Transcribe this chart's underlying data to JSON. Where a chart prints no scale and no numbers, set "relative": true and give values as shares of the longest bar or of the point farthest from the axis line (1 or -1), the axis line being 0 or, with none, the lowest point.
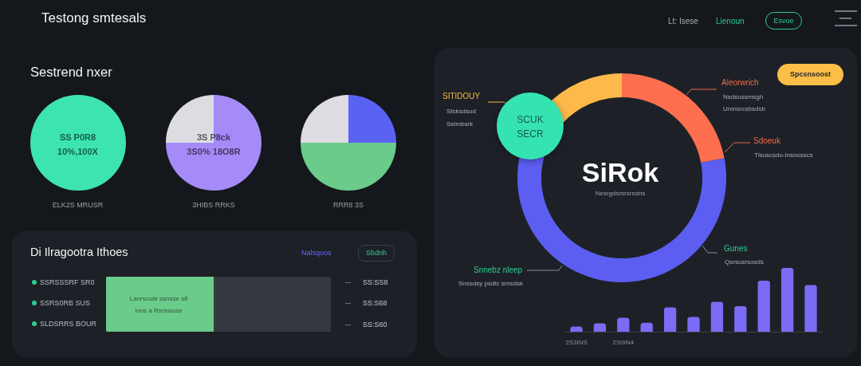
{
  "chart_data": [
    {
      "type": "other",
      "title": "Testong smtesals",
      "annotations": [
        "Lt: Isese",
        "Lienoun",
        "Esvoe"
      ]
    },
    {
      "type": "pie",
      "title": "Sestrend nxer",
      "categories": [
        null
      ],
      "values": [
        100
      ],
      "colors": [
        "#3de3b0"
      ],
      "annotations": [
        "SS P0R8",
        "10%,100X",
        "ELK2S MRUSR"
      ]
    },
    {
      "type": "pie",
      "categories": [
        null,
        null
      ],
      "values": [
        75,
        25
      ],
      "colors": [
        "#a58bf7",
        "#dcdce2"
      ],
      "annotations": [
        "3S P8ck",
        "3S0% 18O8R",
        "3HIBS RRKS"
      ]
    },
    {
      "type": "pie",
      "categories": [
        null,
        null,
        null
      ],
      "values": [
        25,
        50,
        25
      ],
      "colors": [
        "#5a62f2",
        "#6acb8a",
        "#dcdce2"
      ],
      "annotations": [
        "RRR8 3S"
      ]
    },
    {
      "type": "bar",
      "title": "Di Ilragootra Ithoes",
      "orientation": "horizontal",
      "stacked": true,
      "relative": true,
      "categories": [
        null
      ],
      "series": [
        {
          "color": "#6acb8a",
          "values": [
            0.48
          ]
        },
        {
          "color": "#35393f",
          "values": [
            0.52
          ]
        }
      ],
      "annotations": [
        "Nalsquos",
        "Sbdnh",
        "SSRSSSRF SR0",
        "SSRS0RB SUS",
        "SLDSRRS BOUR",
        "Lanrsoulir ssnsse slf",
        "lons a Rsrsssusr",
        "SS:SS8",
        "SS:S68",
        "SS:S60"
      ]
    },
    {
      "type": "donut",
      "title": "SiRok",
      "subtitle": "Nesrgdsrsrsrsdns",
      "categories": [
        null,
        null,
        null
      ],
      "values": [
        22,
        65,
        13
      ],
      "colors": [
        "#fe6f4f",
        "#5b5ef0",
        "#fdb94a"
      ],
      "annotations": [
        "SCUK",
        "SECR",
        "SITIDOUY",
        "Stsksdsud",
        "Sstmbsrk",
        "Aleorwrich",
        "Nsdsussmsgh",
        "Unmsrcsbsdsb",
        "Sdoeuk",
        "Tlsoscsdo-lnsnosscs",
        "Gunes",
        "Qsrsusrsosds",
        "Snnebz nleep",
        "Snssdsy psdtc smsdsk",
        "Spcsnsoost"
      ]
    },
    {
      "type": "bar",
      "relative": true,
      "categories": [
        "2S3INS",
        null,
        "2S0IN4",
        null,
        null,
        null,
        null,
        null,
        null,
        null,
        null
      ],
      "values": [
        0.08,
        0.13,
        0.22,
        0.14,
        0.38,
        0.23,
        0.47,
        0.4,
        0.8,
        1,
        0.73
      ],
      "color": "#7b6cf6"
    }
  ]
}
